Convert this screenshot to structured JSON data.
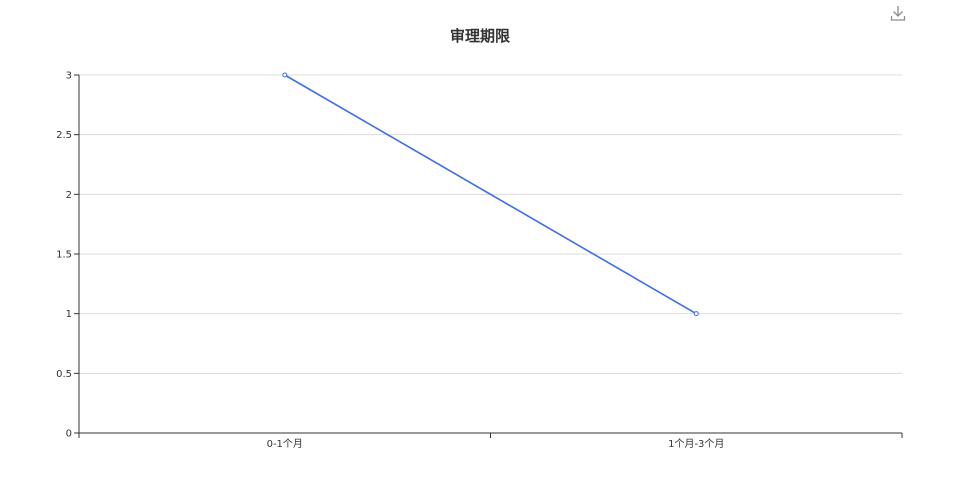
{
  "toolbar": {
    "download_icon": "download-icon"
  },
  "colors": {
    "series": "#3f6ee6",
    "grid": "#dcdcdc",
    "axis": "#333333"
  },
  "chart_data": {
    "type": "line",
    "title": "审理期限",
    "xlabel": "",
    "ylabel": "",
    "categories": [
      "0-1个月",
      "1个月-3个月"
    ],
    "series": [
      {
        "values": [
          3,
          1
        ]
      }
    ],
    "ylim": [
      0,
      3
    ],
    "yticks": [
      0,
      0.5,
      1,
      1.5,
      2,
      2.5,
      3
    ],
    "grid": true,
    "legend": "none"
  }
}
